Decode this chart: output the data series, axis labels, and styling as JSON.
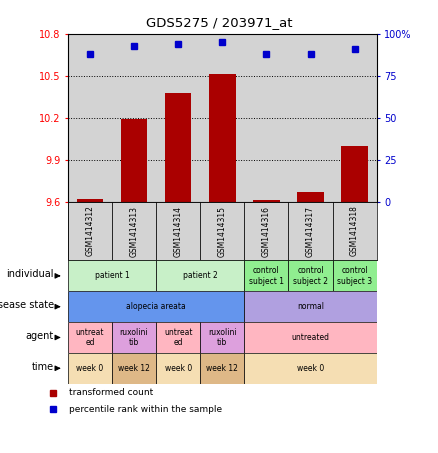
{
  "title": "GDS5275 / 203971_at",
  "samples": [
    "GSM1414312",
    "GSM1414313",
    "GSM1414314",
    "GSM1414315",
    "GSM1414316",
    "GSM1414317",
    "GSM1414318"
  ],
  "bar_values": [
    9.62,
    10.19,
    10.38,
    10.51,
    9.61,
    9.67,
    10.0
  ],
  "percentile_values": [
    88,
    93,
    94,
    95,
    88,
    88,
    91
  ],
  "ylim_left": [
    9.6,
    10.8
  ],
  "ylim_right": [
    0,
    100
  ],
  "yticks_left": [
    9.6,
    9.9,
    10.2,
    10.5,
    10.8
  ],
  "yticks_right": [
    0,
    25,
    50,
    75,
    100
  ],
  "ytick_labels_left": [
    "9.6",
    "9.9",
    "10.2",
    "10.5",
    "10.8"
  ],
  "ytick_labels_right": [
    "0",
    "25",
    "50",
    "75",
    "100%"
  ],
  "bar_color": "#aa0000",
  "dot_color": "#0000cc",
  "plot_bg_color": "#d3d3d3",
  "annotation_rows": [
    {
      "label": "individual",
      "cells": [
        {
          "text": "patient 1",
          "span": 2,
          "color": "#c8f0c8"
        },
        {
          "text": "patient 2",
          "span": 2,
          "color": "#c8f0c8"
        },
        {
          "text": "control\nsubject 1",
          "span": 1,
          "color": "#90ee90"
        },
        {
          "text": "control\nsubject 2",
          "span": 1,
          "color": "#90ee90"
        },
        {
          "text": "control\nsubject 3",
          "span": 1,
          "color": "#90ee90"
        }
      ]
    },
    {
      "label": "disease state",
      "cells": [
        {
          "text": "alopecia areata",
          "span": 4,
          "color": "#6495ed"
        },
        {
          "text": "normal",
          "span": 3,
          "color": "#b0a0e0"
        }
      ]
    },
    {
      "label": "agent",
      "cells": [
        {
          "text": "untreat\ned",
          "span": 1,
          "color": "#ffb6c1"
        },
        {
          "text": "ruxolini\ntib",
          "span": 1,
          "color": "#dda0dd"
        },
        {
          "text": "untreat\ned",
          "span": 1,
          "color": "#ffb6c1"
        },
        {
          "text": "ruxolini\ntib",
          "span": 1,
          "color": "#dda0dd"
        },
        {
          "text": "untreated",
          "span": 3,
          "color": "#ffb6c1"
        }
      ]
    },
    {
      "label": "time",
      "cells": [
        {
          "text": "week 0",
          "span": 1,
          "color": "#f5deb3"
        },
        {
          "text": "week 12",
          "span": 1,
          "color": "#deb887"
        },
        {
          "text": "week 0",
          "span": 1,
          "color": "#f5deb3"
        },
        {
          "text": "week 12",
          "span": 1,
          "color": "#deb887"
        },
        {
          "text": "week 0",
          "span": 3,
          "color": "#f5deb3"
        }
      ]
    }
  ],
  "legend_items": [
    {
      "color": "#aa0000",
      "label": "transformed count"
    },
    {
      "color": "#0000cc",
      "label": "percentile rank within the sample"
    }
  ],
  "fig_width": 4.38,
  "fig_height": 4.53,
  "dpi": 100
}
